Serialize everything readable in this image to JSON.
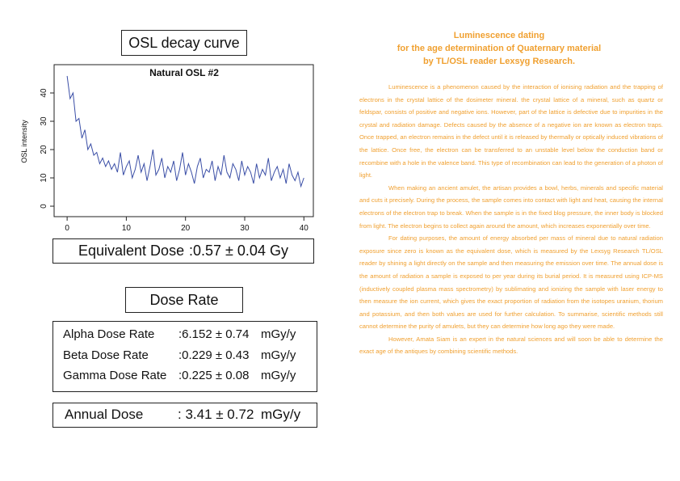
{
  "left": {
    "curve_heading": "OSL decay curve",
    "equivalent_dose": {
      "label": "Equivalent Dose",
      "value": ":0.57 ± 0.04 Gy"
    },
    "dose_rate_heading": "Dose Rate",
    "dose_rates": {
      "rows": [
        {
          "label": "Alpha Dose Rate",
          "value": ":6.152 ± 0.74",
          "unit": "mGy/y"
        },
        {
          "label": "Beta Dose Rate",
          "value": ":0.229 ± 0.43",
          "unit": "mGy/y"
        },
        {
          "label": "Gamma Dose Rate",
          "value": ":0.225 ± 0.08",
          "unit": "mGy/y"
        }
      ]
    },
    "annual_dose": {
      "label": "Annual Dose",
      "value": ": 3.41 ± 0.72",
      "unit": "mGy/y"
    }
  },
  "chart_data": {
    "type": "line",
    "title": "Natural OSL #2",
    "y_label": "OSL intensity",
    "color": "#3a4ea6",
    "x": [
      0,
      0.5,
      1,
      1.5,
      2,
      2.5,
      3,
      3.5,
      4,
      4.5,
      5,
      5.5,
      6,
      6.5,
      7,
      7.5,
      8,
      8.5,
      9,
      9.5,
      10,
      10.5,
      11,
      11.5,
      12,
      12.5,
      13,
      13.5,
      14,
      14.5,
      15,
      15.5,
      16,
      16.5,
      17,
      17.5,
      18,
      18.5,
      19,
      19.5,
      20,
      20.5,
      21,
      21.5,
      22,
      22.5,
      23,
      23.5,
      24,
      24.5,
      25,
      25.5,
      26,
      26.5,
      27,
      27.5,
      28,
      28.5,
      29,
      29.5,
      30,
      30.5,
      31,
      31.5,
      32,
      32.5,
      33,
      33.5,
      34,
      34.5,
      35,
      35.5,
      36,
      36.5,
      37,
      37.5,
      38,
      38.5,
      39,
      39.5,
      40
    ],
    "values": [
      46,
      38,
      40,
      30,
      31,
      24,
      27,
      20,
      22,
      18,
      19,
      15,
      17,
      14,
      16,
      13,
      15,
      12,
      19,
      11,
      14,
      16,
      10,
      13,
      18,
      12,
      15,
      9,
      14,
      20,
      11,
      13,
      17,
      10,
      14,
      12,
      16,
      9,
      13,
      19,
      11,
      15,
      12,
      8,
      14,
      17,
      10,
      13,
      12,
      16,
      9,
      14,
      11,
      18,
      12,
      10,
      15,
      13,
      9,
      16,
      11,
      14,
      12,
      8,
      15,
      10,
      13,
      11,
      17,
      9,
      12,
      14,
      10,
      13,
      8,
      15,
      11,
      9,
      12,
      7,
      10
    ],
    "xlim": [
      -2.2,
      41.6
    ],
    "ylim": [
      -3.7,
      50
    ],
    "xticks": [
      0,
      10,
      20,
      30,
      40
    ],
    "yticks": [
      0,
      10,
      20,
      30,
      40
    ]
  },
  "right": {
    "title_lines": [
      "Luminescence dating",
      "for the age determination of Quaternary material",
      "by TL/OSL reader Lexsyg Research."
    ],
    "paragraphs": [
      "Luminescence is a phenomenon caused by the interaction of ionising radiation and the trapping of electrons in the crystal lattice of the dosimeter mineral. the crystal lattice of a mineral, such as quartz or feldspar, consists of positive and negative ions. However, part of the lattice is defective due to impurities in the crystal and radiation damage. Defects caused by the absence of a negative ion are known as electron traps. Once trapped, an electron remains in the defect until it is released by thermally or optically induced vibrations of the lattice. Once free, the electron can be transferred to an unstable level below the conduction band or recombine with a hole in the valence band. This type of recombination can lead to the generation of a photon of light.",
      "When making an ancient amulet, the artisan provides a bowl, herbs, minerals and specific material and cuts it precisely. During the process, the sample comes into contact with light and heat, causing the internal electrons of the electron trap to break. When the sample is in the fixed blog pressure, the inner body is blocked from light. The electron begins to collect again around the amount, which increases exponentially over time.",
      "For dating purposes, the amount of energy absorbed per mass of mineral due to natural radiation exposure since zero is known as the equivalent dose, which is measured by the Lexsyg Research TL/OSL reader by shining a light directly on the sample and then measuring the emission over time. The annual dose is the amount of radiation a sample is exposed to per year during its burial period. It is measured using ICP-MS (inductively coupled plasma mass spectrometry) by sublimating and ionizing the sample with laser energy to then measure the ion current, which gives the exact proportion of radiation from the isotopes uranium, thorium and potassium, and then both values are used for further calculation. To summarise, scientific methods still cannot determine the purity of amulets, but they can determine how long ago they were made.",
      "However, Amata Siam is an expert in the natural sciences and will soon be able to determine the exact age of the antiques by combining scientific methods."
    ]
  }
}
